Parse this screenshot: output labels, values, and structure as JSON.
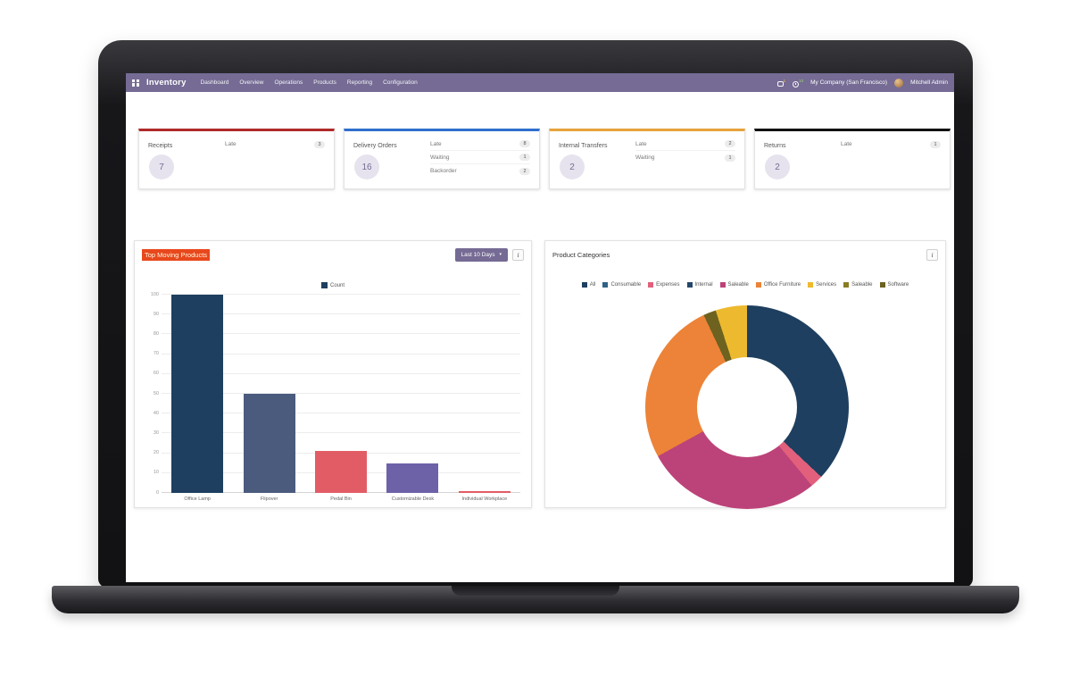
{
  "nav": {
    "app_name": "Inventory",
    "items": [
      "Dashboard",
      "Overview",
      "Operations",
      "Products",
      "Reporting",
      "Configuration"
    ],
    "messages_badge": "1",
    "activities_badge": "10",
    "company": "My Company (San Francisco)",
    "user": "Mitchell Admin"
  },
  "cards": [
    {
      "title": "Receipts",
      "count": "7",
      "accent": "#b02a2a",
      "rows": [
        {
          "label": "Late",
          "badge": "3"
        }
      ]
    },
    {
      "title": "Delivery Orders",
      "count": "16",
      "accent": "#2f6fce",
      "rows": [
        {
          "label": "Late",
          "badge": "8"
        },
        {
          "label": "Waiting",
          "badge": "1"
        },
        {
          "label": "Backorder",
          "badge": "2"
        }
      ]
    },
    {
      "title": "Internal Transfers",
      "count": "2",
      "accent": "#e7a33c",
      "rows": [
        {
          "label": "Late",
          "badge": "2"
        },
        {
          "label": "Waiting",
          "badge": "1"
        }
      ]
    },
    {
      "title": "Returns",
      "count": "2",
      "accent": "#111111",
      "rows": [
        {
          "label": "Late",
          "badge": "1"
        }
      ]
    }
  ],
  "panels": {
    "left": {
      "title": "Top Moving Products",
      "dropdown_label": "Last 10 Days",
      "info_label": "i"
    },
    "right": {
      "title": "Product Categories",
      "info_label": "i"
    }
  },
  "chart_data": [
    {
      "type": "bar",
      "title": "Top Moving Products",
      "legend": [
        {
          "name": "Count",
          "color": "#1e3f5f"
        }
      ],
      "categories": [
        "Office Lamp",
        "Flipover",
        "Pedal Bin",
        "Customizable Desk",
        "Individual Workplace"
      ],
      "values": [
        100,
        50,
        21,
        15,
        1
      ],
      "bar_colors": [
        "#1e3f5f",
        "#4b5b7e",
        "#e25c66",
        "#6d62a8",
        "#e25c66"
      ],
      "xlabel": "",
      "ylabel": "",
      "ylim": [
        0,
        100
      ],
      "yticks": [
        0,
        10,
        20,
        30,
        40,
        50,
        60,
        70,
        80,
        90,
        100
      ],
      "grid": true,
      "legend_position": "top"
    },
    {
      "type": "pie",
      "donut": true,
      "title": "Product Categories",
      "legend": [
        {
          "name": "All",
          "color": "#1e3f5f"
        },
        {
          "name": "Consumable",
          "color": "#2e6387"
        },
        {
          "name": "Expenses",
          "color": "#e2607c"
        },
        {
          "name": "Internal",
          "color": "#24476b"
        },
        {
          "name": "Saleable",
          "color": "#bc4379"
        },
        {
          "name": "Office Furniture",
          "color": "#ec8338"
        },
        {
          "name": "Services",
          "color": "#edb92e"
        },
        {
          "name": "Saleable",
          "color": "#8a7c22"
        },
        {
          "name": "Software",
          "color": "#6d621f"
        }
      ],
      "slices": [
        {
          "label": "All",
          "value": 37,
          "color": "#1e3f5f"
        },
        {
          "label": "Expenses",
          "value": 2,
          "color": "#e2607c"
        },
        {
          "label": "Saleable",
          "value": 28,
          "color": "#bc4379"
        },
        {
          "label": "Office Furniture",
          "value": 26,
          "color": "#ec8338"
        },
        {
          "label": "Software",
          "value": 2,
          "color": "#6d621f"
        },
        {
          "label": "Services",
          "value": 5,
          "color": "#edb92e"
        }
      ],
      "legend_position": "top"
    }
  ]
}
